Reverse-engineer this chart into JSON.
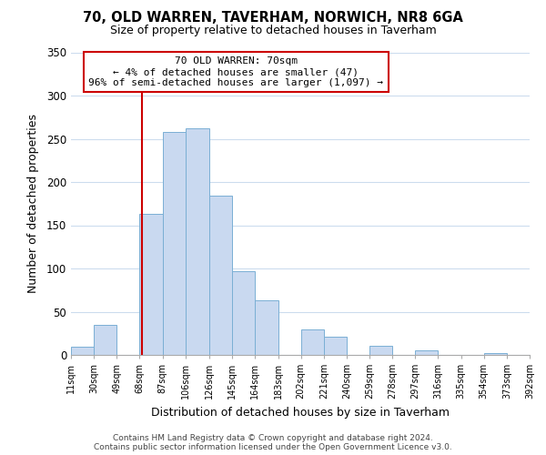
{
  "title": "70, OLD WARREN, TAVERHAM, NORWICH, NR8 6GA",
  "subtitle": "Size of property relative to detached houses in Taverham",
  "xlabel": "Distribution of detached houses by size in Taverham",
  "ylabel": "Number of detached properties",
  "bar_edges": [
    11,
    30,
    49,
    68,
    87,
    106,
    126,
    145,
    164,
    183,
    202,
    221,
    240,
    259,
    278,
    297,
    316,
    335,
    354,
    373,
    392
  ],
  "bar_heights": [
    9,
    35,
    0,
    163,
    258,
    262,
    184,
    97,
    63,
    0,
    30,
    21,
    0,
    11,
    0,
    5,
    0,
    0,
    2,
    0,
    2
  ],
  "bar_color": "#c9d9f0",
  "bar_edge_color": "#7aafd4",
  "property_line_x": 70,
  "property_line_color": "#cc0000",
  "ylim": [
    0,
    350
  ],
  "yticks": [
    0,
    50,
    100,
    150,
    200,
    250,
    300,
    350
  ],
  "annotation_title": "70 OLD WARREN: 70sqm",
  "annotation_line1": "← 4% of detached houses are smaller (47)",
  "annotation_line2": "96% of semi-detached houses are larger (1,097) →",
  "annotation_box_color": "#ffffff",
  "annotation_box_edge_color": "#cc0000",
  "footer_line1": "Contains HM Land Registry data © Crown copyright and database right 2024.",
  "footer_line2": "Contains public sector information licensed under the Open Government Licence v3.0.",
  "background_color": "#ffffff",
  "grid_color": "#ccdcee"
}
